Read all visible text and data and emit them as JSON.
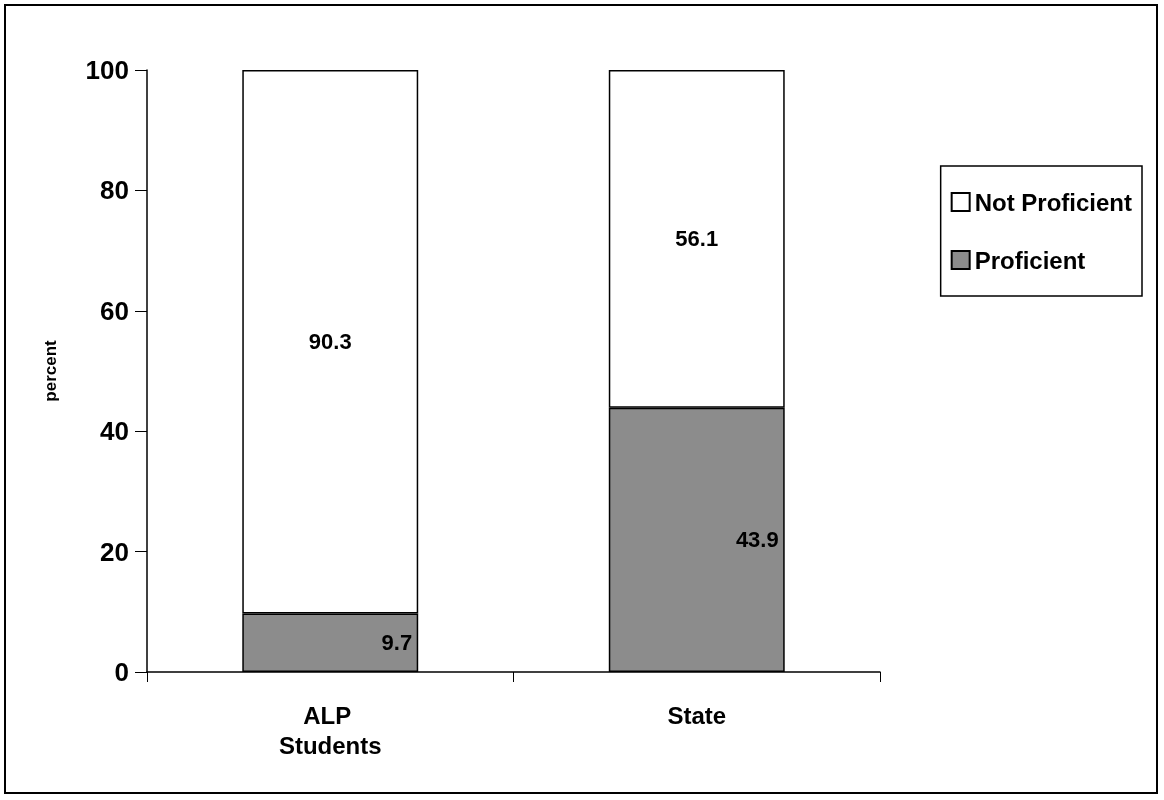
{
  "chart_data": {
    "type": "bar",
    "stacked": true,
    "ylabel": "percent",
    "categories": [
      "ALP Students",
      "State"
    ],
    "series": [
      {
        "name": "Proficient",
        "color": "#8c8c8c",
        "values": [
          9.7,
          43.9
        ]
      },
      {
        "name": "Not Proficient",
        "color": "#ffffff",
        "values": [
          90.3,
          56.1
        ]
      }
    ],
    "ylim": [
      0,
      100
    ],
    "yticks": [
      0,
      20,
      40,
      60,
      80,
      100
    ],
    "grid": false,
    "legend": "right",
    "data_labels": true
  }
}
